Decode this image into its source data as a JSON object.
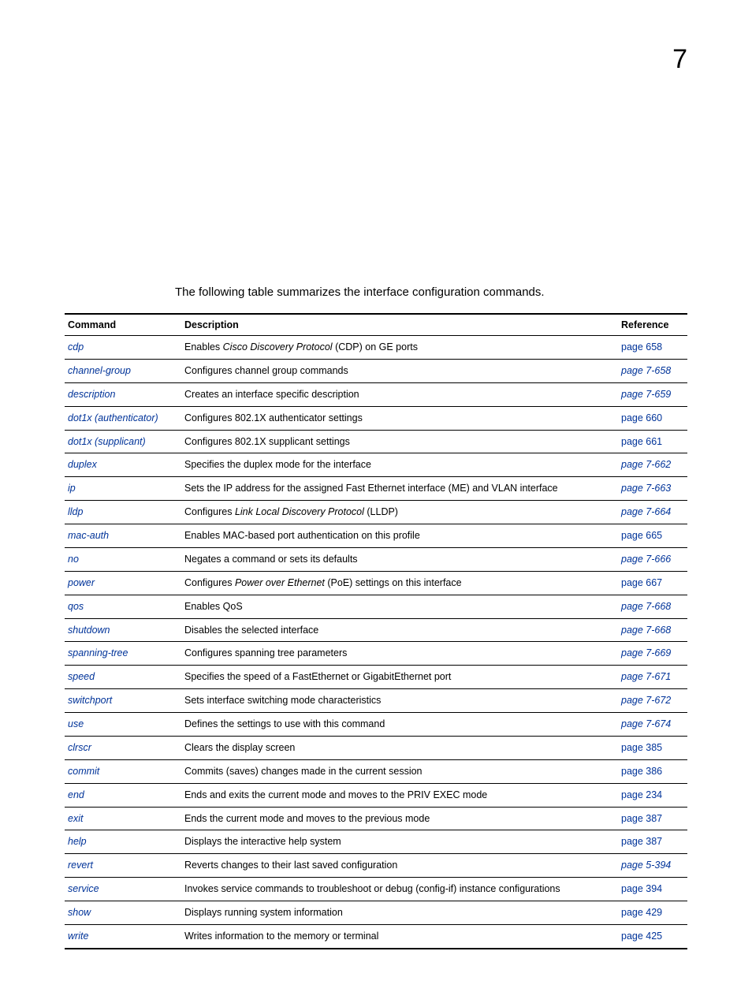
{
  "page_number": "7",
  "intro": "The following table summarizes the interface configuration commands.",
  "headers": {
    "command": "Command",
    "description": "Description",
    "reference": "Reference"
  },
  "rows": [
    {
      "cmd": "cdp",
      "desc": "Enables <em>Cisco Discovery Protocol</em> (CDP) on GE ports",
      "ref": "page 658",
      "ref_italic": false
    },
    {
      "cmd": "channel-group",
      "desc": "Configures channel group commands",
      "ref": "page 7-658",
      "ref_italic": true
    },
    {
      "cmd": "description",
      "desc": "Creates an interface specific description",
      "ref": "page 7-659",
      "ref_italic": true
    },
    {
      "cmd": "dot1x (authenticator)",
      "desc": "Configures 802.1X authenticator settings",
      "ref": "page 660",
      "ref_italic": false
    },
    {
      "cmd": "dot1x (supplicant)",
      "desc": "Configures 802.1X supplicant settings",
      "ref": "page 661",
      "ref_italic": false
    },
    {
      "cmd": "duplex",
      "desc": "Specifies the duplex mode for the interface",
      "ref": "page 7-662",
      "ref_italic": true
    },
    {
      "cmd": "ip",
      "desc": "Sets the IP address for the assigned Fast Ethernet interface (ME) and VLAN interface",
      "ref": "page 7-663",
      "ref_italic": true
    },
    {
      "cmd": "lldp",
      "desc": "Configures <em>Link Local Discovery Protocol</em> (LLDP)",
      "ref": "page 7-664",
      "ref_italic": true
    },
    {
      "cmd": "mac-auth",
      "desc": "Enables MAC-based port authentication on this profile",
      "ref": "page 665",
      "ref_italic": false
    },
    {
      "cmd": "no",
      "desc": "Negates a command or sets its defaults",
      "ref": "page 7-666",
      "ref_italic": true
    },
    {
      "cmd": "power",
      "desc": "Configures <em>Power over Ethernet</em> (PoE) settings on this interface",
      "ref": "page 667",
      "ref_italic": false
    },
    {
      "cmd": "qos",
      "desc": "Enables QoS",
      "ref": "page 7-668",
      "ref_italic": true
    },
    {
      "cmd": "shutdown",
      "desc": "Disables the selected interface",
      "ref": "page 7-668",
      "ref_italic": true
    },
    {
      "cmd": "spanning-tree",
      "desc": "Configures spanning tree parameters",
      "ref": "page 7-669",
      "ref_italic": true
    },
    {
      "cmd": "speed",
      "desc": "Specifies the speed of a FastEthernet or GigabitEthernet port",
      "ref": "page 7-671",
      "ref_italic": true
    },
    {
      "cmd": "switchport",
      "desc": "Sets interface switching mode characteristics",
      "ref": "page 7-672",
      "ref_italic": true
    },
    {
      "cmd": "use",
      "desc": "Defines the settings to use with this command",
      "ref": "page 7-674",
      "ref_italic": true
    },
    {
      "cmd": "clrscr",
      "desc": "Clears the display screen",
      "ref": "page 385",
      "ref_italic": false
    },
    {
      "cmd": "commit",
      "desc": "Commits (saves) changes made in the current session",
      "ref": "page 386",
      "ref_italic": false
    },
    {
      "cmd": "end",
      "desc": "Ends and exits the current mode and moves to the PRIV EXEC mode",
      "ref": "page 234",
      "ref_italic": false
    },
    {
      "cmd": "exit",
      "desc": "Ends the current mode and moves to the previous mode",
      "ref": "page 387",
      "ref_italic": false
    },
    {
      "cmd": "help",
      "desc": "Displays the interactive help system",
      "ref": "page 387",
      "ref_italic": false
    },
    {
      "cmd": "revert",
      "desc": "Reverts changes to their last saved configuration",
      "ref": "page 5-394",
      "ref_italic": true
    },
    {
      "cmd": "service",
      "desc": "Invokes service commands to troubleshoot or debug (config-if) instance configurations",
      "ref": "page 394",
      "ref_italic": false
    },
    {
      "cmd": "show",
      "desc": "Displays running system information",
      "ref": "page 429",
      "ref_italic": false
    },
    {
      "cmd": "write",
      "desc": "Writes information to the memory or terminal",
      "ref": "page 425",
      "ref_italic": false
    }
  ],
  "colors": {
    "link": "#003399",
    "text": "#000000",
    "border": "#000000"
  }
}
